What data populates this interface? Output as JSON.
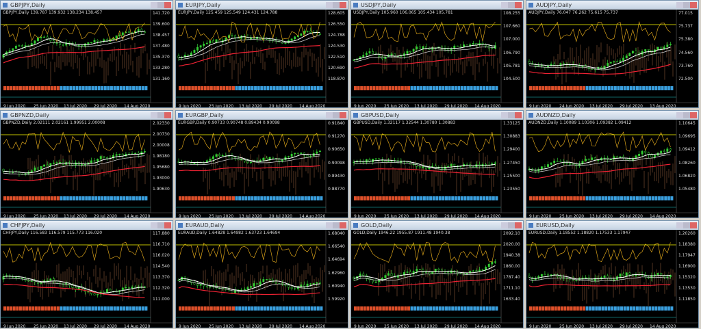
{
  "windows": [
    {
      "title": "GBPJPY,Daily",
      "quote": "139.787 139.932 138.234 138.457",
      "prices": [
        "141.720",
        "139.600",
        "138.457",
        "137.480",
        "135.370",
        "133.280",
        "131.160"
      ],
      "dates": [
        "9 Jun 2020",
        "25 Jun 2020",
        "13 Jul 2020",
        "29 Jul 2020",
        "14 Aug 2020"
      ]
    },
    {
      "title": "EURJPY,Daily",
      "quote": "125.459 125.549 124.431 124.788",
      "prices": [
        "128.605",
        "126.550",
        "124.788",
        "124.530",
        "122.510",
        "120.690",
        "118.870"
      ],
      "dates": [
        "9 Jun 2020",
        "25 Jun 2020",
        "13 Jul 2020",
        "29 Jul 2020",
        "14 Aug 2020"
      ]
    },
    {
      "title": "USDJPY,Daily",
      "quote": "105.960 106.065 105.434 105.781",
      "prices": [
        "108.255",
        "107.660",
        "107.000",
        "106.790",
        "105.781",
        "104.500"
      ],
      "dates": [
        "9 Jun 2020",
        "25 Jun 2020",
        "13 Jul 2020",
        "29 Jul 2020",
        "14 Aug 2020"
      ]
    },
    {
      "title": "AUDJPY,Daily",
      "quote": "76.047 76.262 75.615 75.737",
      "prices": [
        "77.015",
        "75.737",
        "75.380",
        "74.560",
        "73.760",
        "72.500"
      ],
      "dates": [
        "9 Jun 2020",
        "24 Jun 2020",
        "13 Jul 2020",
        "29 Jul 2020",
        "13 Aug 2020"
      ]
    },
    {
      "title": "GBPNZD,Daily",
      "quote": "2.02111 2.02161 1.99951 2.00008",
      "prices": [
        "2.02330",
        "2.00730",
        "2.00008",
        "1.98180",
        "1.95680",
        "1.93000",
        "1.90630"
      ],
      "dates": [
        "9 Jun 2020",
        "25 Jun 2020",
        "13 Jul 2020",
        "29 Jul 2020",
        "14 Aug 2020"
      ]
    },
    {
      "title": "EURGBP,Daily",
      "quote": "0.90733 0.90748 0.89434 0.90098",
      "prices": [
        "0.91840",
        "0.91270",
        "0.90650",
        "0.90098",
        "0.89430",
        "0.88770"
      ],
      "dates": [
        "9 Jun 2020",
        "25 Jun 2020",
        "13 Jul 2020",
        "29 Jul 2020",
        "14 Aug 2020"
      ]
    },
    {
      "title": "GBPUSD,Daily",
      "quote": "1.32117 1.32544 1.30780 1.30883",
      "prices": [
        "1.33125",
        "1.30883",
        "1.29400",
        "1.27450",
        "1.25500",
        "1.23550"
      ],
      "dates": [
        "9 Jun 2020",
        "25 Jun 2020",
        "13 Jul 2020",
        "29 Jul 2020",
        "14 Aug 2020"
      ]
    },
    {
      "title": "AUDNZD,Daily",
      "quote": "1.10089 1.10306 1.09382 1.09412",
      "prices": [
        "1.10645",
        "1.09695",
        "1.09412",
        "1.08260",
        "1.06820",
        "1.05480"
      ],
      "dates": [
        "9 Jun 2020",
        "25 Jun 2020",
        "13 Jul 2020",
        "29 Jul 2020",
        "14 Aug 2020"
      ]
    },
    {
      "title": "CHFJPY,Daily",
      "quote": "116.583 116.579 115.773 116.020",
      "prices": [
        "117.880",
        "116.710",
        "116.020",
        "114.540",
        "113.370",
        "112.320",
        "111.000"
      ],
      "dates": [
        "9 Jun 2020",
        "25 Jun 2020",
        "13 Jul 2020",
        "29 Jul 2020",
        "14 Aug 2020"
      ]
    },
    {
      "title": "EURAUD,Daily",
      "quote": "1.64828 1.64982 1.63723 1.64694",
      "prices": [
        "1.68040",
        "1.66540",
        "1.64694",
        "1.62960",
        "1.60940",
        "1.59920"
      ],
      "dates": [
        "9 Jun 2020",
        "25 Jun 2020",
        "13 Jul 2020",
        "29 Jul 2020",
        "14 Aug 2020"
      ]
    },
    {
      "title": "GOLD,Daily",
      "quote": "1946.22 1955.87 1911.48 1940.38",
      "prices": [
        "2092.10",
        "2020.00",
        "1940.38",
        "1860.00",
        "1787.40",
        "1711.10",
        "1633.40"
      ],
      "dates": [
        "9 Jun 2020",
        "25 Jun 2020",
        "13 Jul 2020",
        "29 Jul 2020",
        "14 Aug 2020"
      ]
    },
    {
      "title": "EURUSD,Daily",
      "quote": "1.18552 1.18820 1.17533 1.17947",
      "prices": [
        "1.20260",
        "1.18380",
        "1.17947",
        "1.16900",
        "1.15320",
        "1.13530",
        "1.11850"
      ],
      "dates": [
        "9 Jun 2020",
        "25 Jun 2020",
        "13 Jul 2020",
        "29 Jul 2020",
        "14 Aug 2020"
      ]
    }
  ]
}
